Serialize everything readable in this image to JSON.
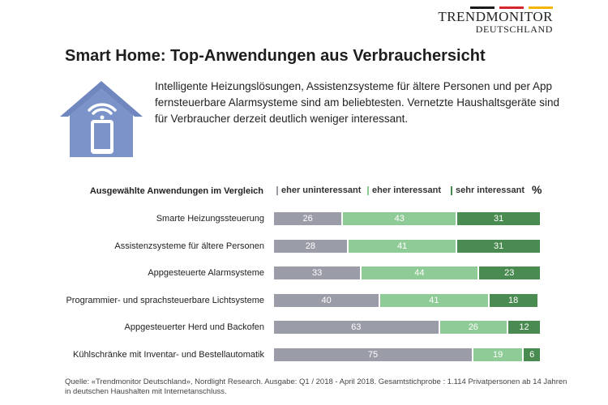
{
  "brand": {
    "name": "TRENDMONITOR",
    "sub": "DEUTSCHLAND",
    "flag_colors": [
      "#1a1a1a",
      "#d7262b",
      "#f2b600"
    ]
  },
  "title": "Smart Home: Top-Anwendungen aus Verbrauchersicht",
  "intro": "Intelligente Heizungslösungen, Assistenzsysteme für ältere Personen und per App fernsteuerbare Alarmsysteme sind am beliebtesten. Vernetzte Haushaltsgeräte sind für Verbraucher derzeit deutlich weniger interessant.",
  "icon": "smart-home-house-with-phone-and-wifi",
  "source": "Quelle: «Trendmonitor Deutschland», Nordlight Research. Ausgabe: Q1 / 2018 - April 2018. Gesamtstichprobe : 1.114 Privatpersonen ab 14 Jahren in deutschen Haushalten mit Internetanschluss.",
  "chart_data": {
    "type": "bar",
    "orientation": "horizontal",
    "stacked": true,
    "title": "Ausgewählte Anwendungen im Vergleich",
    "unit": "%",
    "categories": [
      "Smarte Heizungssteuerung",
      "Assistenzsysteme für ältere Personen",
      "Appgesteuerte Alarmsysteme",
      "Programmier- und sprachsteuerbare Lichtsysteme",
      "Appgesteuerter Herd und Backofen",
      "Kühlschränke mit Inventar- und Bestellautomatik"
    ],
    "series": [
      {
        "name": "eher uninteressant",
        "color": "#9a9ca8",
        "values": [
          26,
          28,
          33,
          40,
          63,
          75
        ]
      },
      {
        "name": "eher interessant",
        "color": "#8fcb96",
        "values": [
          43,
          41,
          44,
          41,
          26,
          19
        ]
      },
      {
        "name": "sehr interessant",
        "color": "#4a8b51",
        "values": [
          31,
          31,
          23,
          18,
          12,
          6
        ]
      }
    ],
    "xlim": [
      0,
      100
    ],
    "legend_position": "top"
  }
}
